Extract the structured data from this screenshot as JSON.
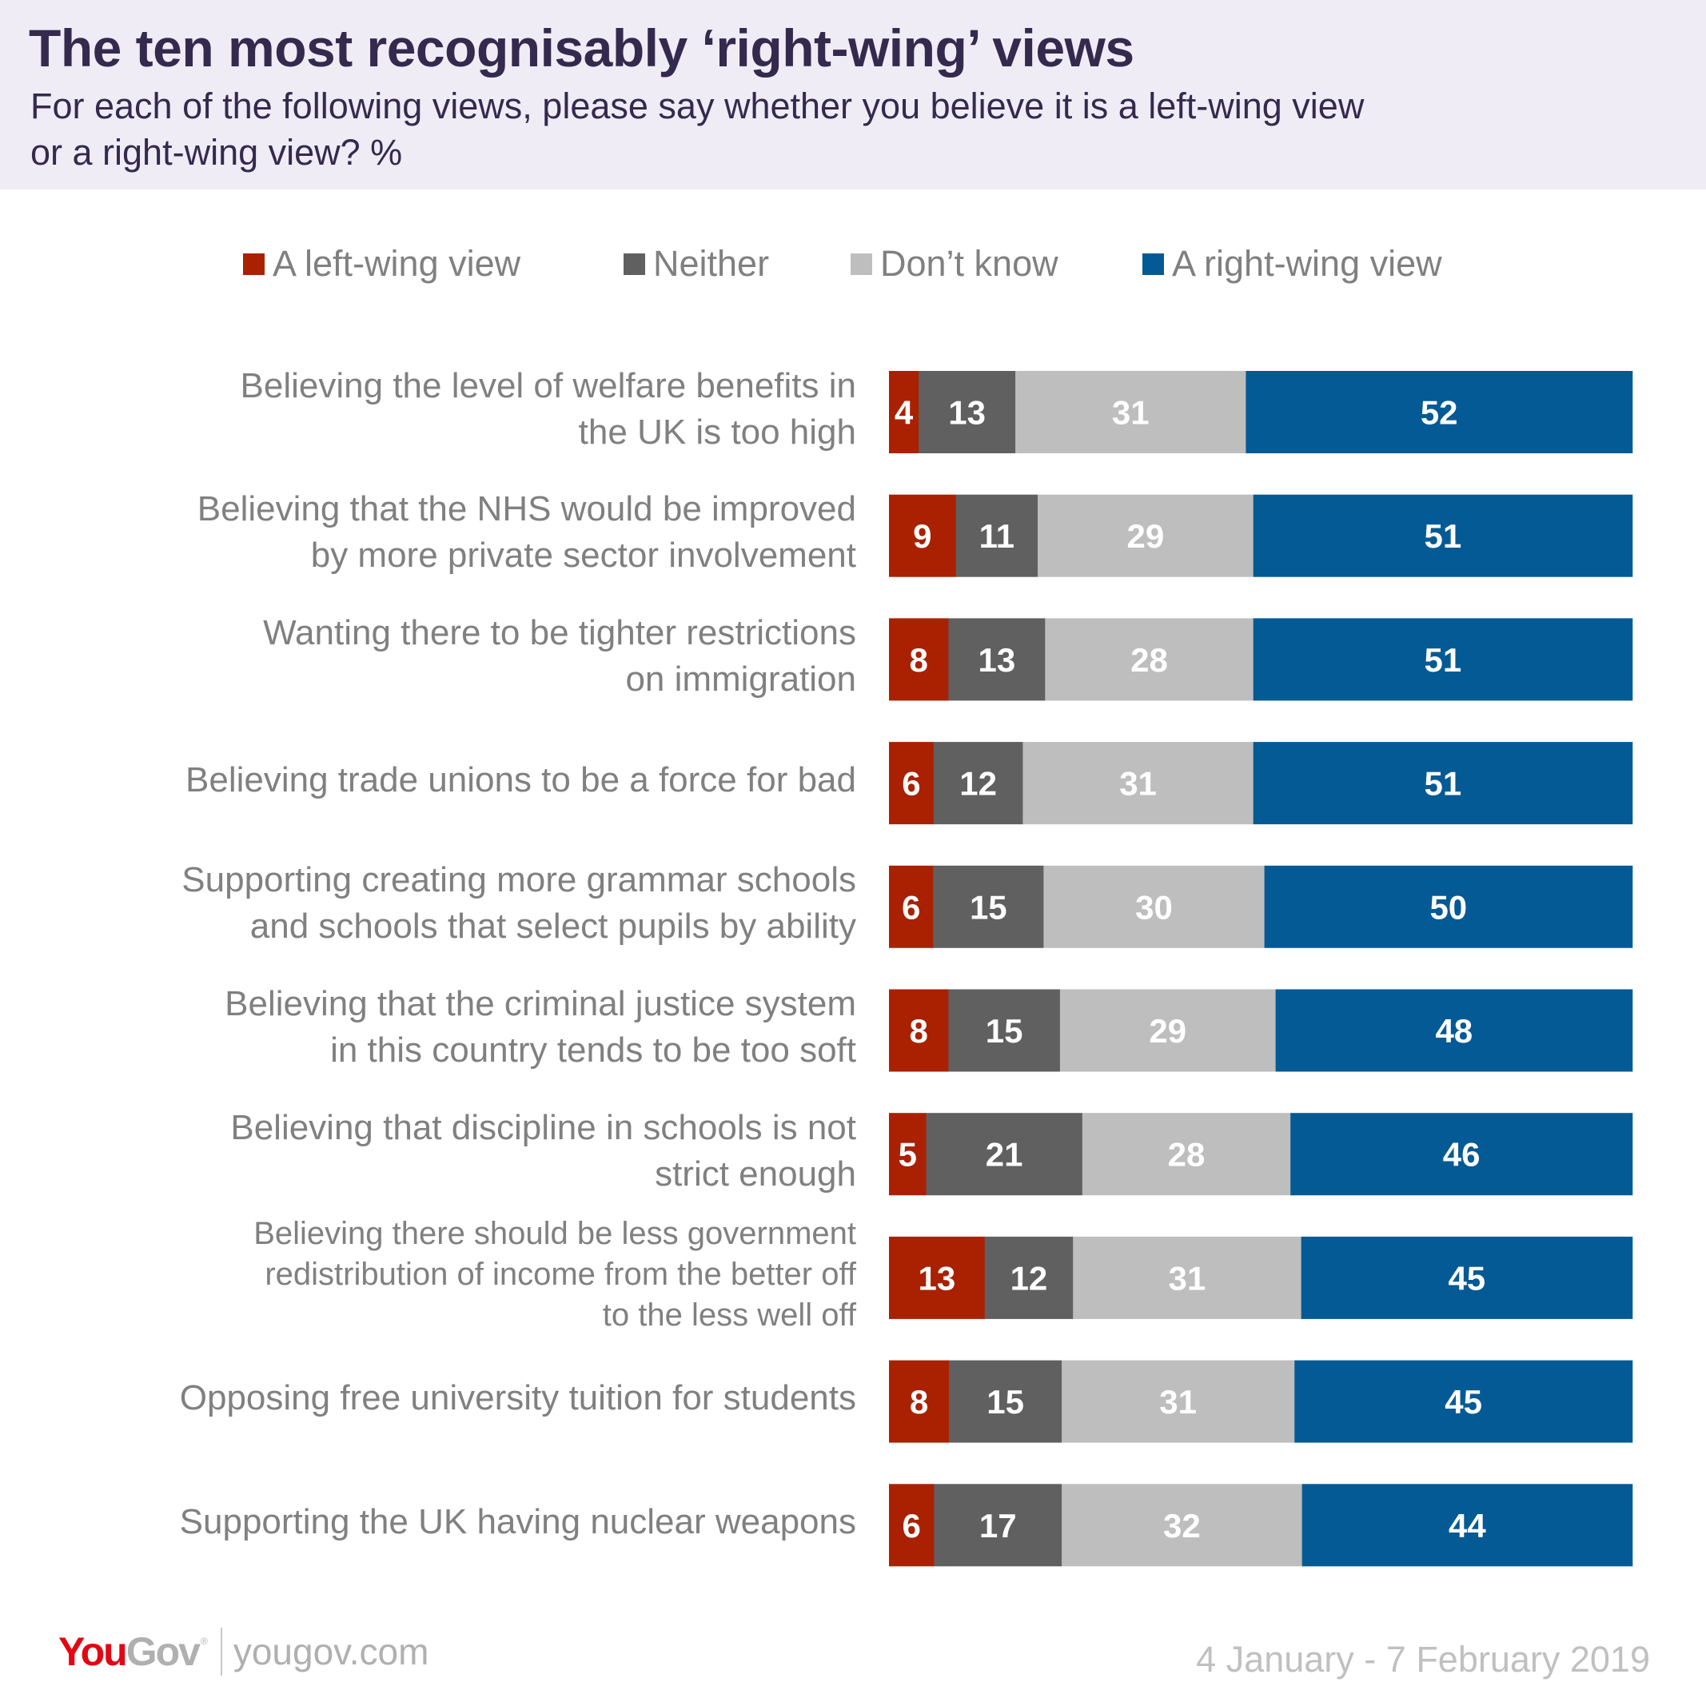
{
  "header": {
    "title": "The ten most recognisably ‘right-wing’ views",
    "subtitle_line1": "For each of the following views, please say whether you believe it is a left-wing view",
    "subtitle_line2": "or a right-wing view? %"
  },
  "colors": {
    "left": "#A92100",
    "neither": "#606060",
    "dont_know": "#BEBEBE",
    "right": "#045A95",
    "header_bg": "#EFECF6",
    "title_text": "#342A4E",
    "label_text": "#808080",
    "logo_red": "#E30613",
    "logo_gray": "#B0B0B0"
  },
  "legend": [
    {
      "key": "left",
      "label": "A left-wing view",
      "color": "#A92100"
    },
    {
      "key": "neither",
      "label": "Neither",
      "color": "#606060"
    },
    {
      "key": "dont_know",
      "label": "Don’t know",
      "color": "#BEBEBE"
    },
    {
      "key": "right",
      "label": "A right-wing view",
      "color": "#045A95"
    }
  ],
  "chart_data": {
    "type": "bar",
    "orientation": "horizontal",
    "stacked": true,
    "title": "The ten most recognisably ‘right-wing’ views",
    "subtitle": "For each of the following views, please say whether you believe it is a left-wing view or a right-wing view? %",
    "xlabel": "",
    "ylabel": "",
    "xlim": [
      0,
      100
    ],
    "grid": false,
    "legend_position": "top",
    "categories": [
      [
        "Believing the level of welfare benefits in",
        "the UK is too high"
      ],
      [
        "Believing that the NHS would be improved",
        "by more private sector involvement"
      ],
      [
        "Wanting there to be tighter restrictions",
        "on immigration"
      ],
      [
        "Believing trade unions to be a force for bad"
      ],
      [
        "Supporting creating more grammar schools",
        "and schools that select pupils by ability"
      ],
      [
        "Believing that the criminal justice system",
        "in this country tends to be too soft"
      ],
      [
        "Believing that discipline in schools is not",
        "strict enough"
      ],
      [
        "Believing there should be less government",
        "redistribution of income from the better off",
        "to the less well off"
      ],
      [
        "Opposing free university tuition for students"
      ],
      [
        "Supporting the UK having nuclear weapons"
      ]
    ],
    "series": [
      {
        "name": "A left-wing view",
        "key": "left",
        "values": [
          4,
          9,
          8,
          6,
          6,
          8,
          5,
          13,
          8,
          6
        ]
      },
      {
        "name": "Neither",
        "key": "neither",
        "values": [
          13,
          11,
          13,
          12,
          15,
          15,
          21,
          12,
          15,
          17
        ]
      },
      {
        "name": "Don’t know",
        "key": "dont_know",
        "values": [
          31,
          29,
          28,
          31,
          30,
          29,
          28,
          31,
          31,
          32
        ]
      },
      {
        "name": "A right-wing view",
        "key": "right",
        "values": [
          52,
          51,
          51,
          51,
          50,
          48,
          46,
          45,
          45,
          44
        ]
      }
    ]
  },
  "footer": {
    "logo_you": "You",
    "logo_gov": "Gov",
    "logo_reg": "®",
    "url": "yougov.com",
    "date_range": "4 January - 7 February 2019"
  }
}
